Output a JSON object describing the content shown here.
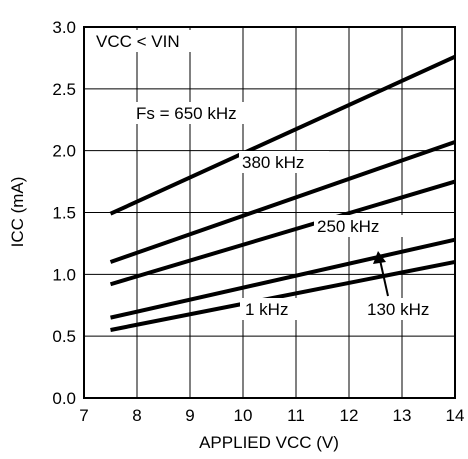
{
  "chart_data": {
    "type": "line",
    "title": "",
    "xlabel": "APPLIED VCC (V)",
    "ylabel": "ICC (mA)",
    "xlim": [
      7,
      14
    ],
    "ylim": [
      0.0,
      3.0
    ],
    "xticks": [
      7,
      8,
      9,
      10,
      11,
      12,
      13,
      14
    ],
    "xtick_labels": [
      "7",
      "8",
      "9",
      "10",
      "11",
      "12",
      "13",
      "14"
    ],
    "yticks": [
      0.0,
      0.5,
      1.0,
      1.5,
      2.0,
      2.5,
      3.0
    ],
    "ytick_labels": [
      "0.0",
      "0.5",
      "1.0",
      "1.5",
      "2.0",
      "2.5",
      "3.0"
    ],
    "grid": true,
    "condition_text": "VCC < VIN",
    "series": [
      {
        "name": "Fs = 650 kHz",
        "x": [
          7.5,
          14
        ],
        "y": [
          1.49,
          2.76
        ]
      },
      {
        "name": "380 kHz",
        "x": [
          7.5,
          14
        ],
        "y": [
          1.1,
          2.07
        ]
      },
      {
        "name": "250 kHz",
        "x": [
          7.5,
          14
        ],
        "y": [
          0.92,
          1.75
        ]
      },
      {
        "name": "130 kHz",
        "x": [
          7.5,
          14
        ],
        "y": [
          0.65,
          1.28
        ]
      },
      {
        "name": "1 kHz",
        "x": [
          7.5,
          14
        ],
        "y": [
          0.55,
          1.1
        ]
      }
    ],
    "line_color": "#000000"
  }
}
